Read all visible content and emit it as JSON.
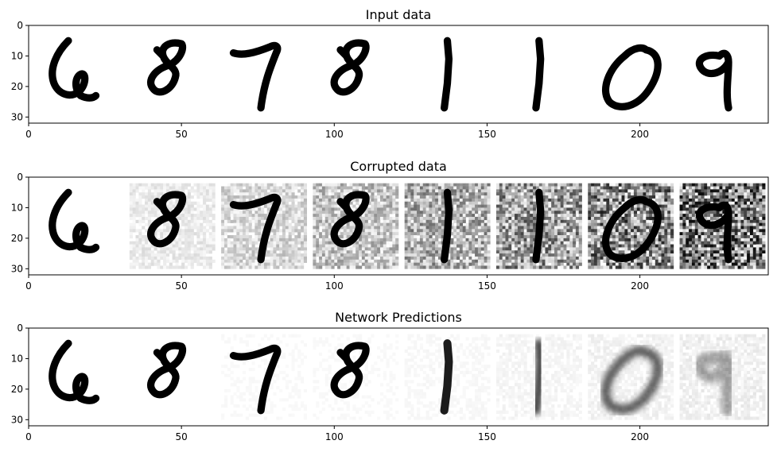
{
  "chart_data": [
    {
      "type": "image",
      "title": "Input data",
      "xlim": [
        0,
        242
      ],
      "ylim": [
        32,
        0
      ],
      "xticks": [
        0,
        50,
        100,
        150,
        200
      ],
      "yticks": [
        0,
        10,
        20,
        30
      ],
      "digits": [
        "6",
        "8",
        "7",
        "8",
        "1",
        "1",
        "0",
        "9"
      ],
      "noise_levels": [
        0,
        0,
        0,
        0,
        0,
        0,
        0,
        0
      ],
      "blur_levels": [
        0,
        0,
        0,
        0,
        0,
        0,
        0,
        0
      ]
    },
    {
      "type": "image",
      "title": "Corrupted data",
      "xlim": [
        0,
        242
      ],
      "ylim": [
        32,
        0
      ],
      "xticks": [
        0,
        50,
        100,
        150,
        200
      ],
      "yticks": [
        0,
        10,
        20,
        30
      ],
      "digits": [
        "6",
        "8",
        "7",
        "8",
        "1",
        "1",
        "0",
        "9"
      ],
      "noise_levels": [
        0.0,
        0.14,
        0.28,
        0.42,
        0.56,
        0.7,
        0.85,
        1.0
      ],
      "blur_levels": [
        0,
        0,
        0,
        0,
        0,
        0,
        0,
        0
      ]
    },
    {
      "type": "image",
      "title": "Network Predictions",
      "xlim": [
        0,
        242
      ],
      "ylim": [
        32,
        0
      ],
      "xticks": [
        0,
        50,
        100,
        150,
        200
      ],
      "yticks": [
        0,
        10,
        20,
        30
      ],
      "digits": [
        "6",
        "8",
        "7",
        "8",
        "1",
        "1",
        "0",
        "9"
      ],
      "noise_levels": [
        0.02,
        0.02,
        0.03,
        0.03,
        0.04,
        0.06,
        0.08,
        0.1
      ],
      "blur_levels": [
        0,
        0,
        0,
        0,
        0.2,
        0.45,
        0.7,
        1.2
      ]
    }
  ]
}
